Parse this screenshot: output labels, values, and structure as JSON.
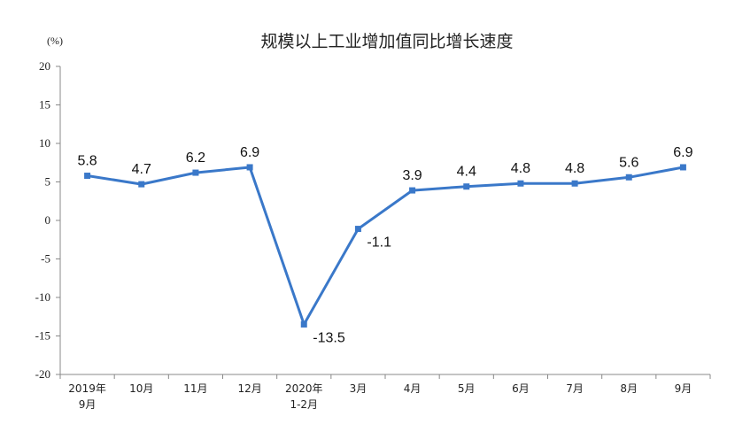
{
  "chart_data": {
    "type": "line",
    "title": "规模以上工业增加值同比增长速度",
    "ylabel": "(%)",
    "xlabel": "",
    "ylim": [
      -20,
      20
    ],
    "yticks": [
      20,
      15,
      10,
      5,
      0,
      -5,
      -10,
      -15,
      -20
    ],
    "categories": [
      [
        "2019年",
        "9月"
      ],
      [
        "10月"
      ],
      [
        "11月"
      ],
      [
        "12月"
      ],
      [
        "2020年",
        "1-2月"
      ],
      [
        "3月"
      ],
      [
        "4月"
      ],
      [
        "5月"
      ],
      [
        "6月"
      ],
      [
        "7月"
      ],
      [
        "8月"
      ],
      [
        "9月"
      ]
    ],
    "values": [
      5.8,
      4.7,
      6.2,
      6.9,
      -13.5,
      -1.1,
      3.9,
      4.4,
      4.8,
      4.8,
      5.6,
      6.9
    ],
    "data_labels": [
      "5.8",
      "4.7",
      "6.2",
      "6.9",
      "-13.5",
      "-1.1",
      "3.9",
      "4.4",
      "4.8",
      "4.8",
      "5.6",
      "6.9"
    ],
    "grid": false,
    "legend": "none",
    "line_color": "#3A78C9"
  }
}
